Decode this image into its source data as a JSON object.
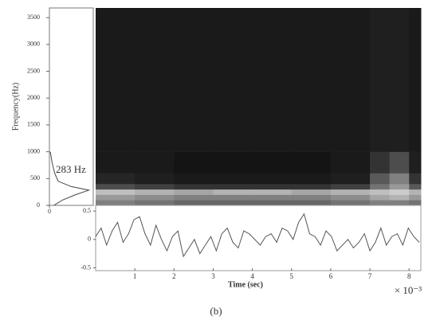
{
  "chart_data": [
    {
      "type": "heatmap",
      "y_label": "Frequency(Hz)",
      "xlim": [
        0,
        8.3
      ],
      "ylim": [
        0,
        3680
      ],
      "yticks": [
        0,
        500,
        1000,
        1500,
        2000,
        2500,
        3000,
        3500
      ],
      "x_bins": [
        0,
        1,
        2,
        3,
        4,
        5,
        6,
        7,
        7.5,
        8,
        8.3
      ],
      "y_bins": [
        0,
        100,
        200,
        300,
        400,
        600,
        1000,
        3680
      ],
      "z": [
        [
          0.5,
          0.45,
          0.4,
          0.4,
          0.4,
          0.4,
          0.45,
          0.5,
          0.5,
          0.45
        ],
        [
          0.6,
          0.55,
          0.5,
          0.5,
          0.5,
          0.5,
          0.55,
          0.65,
          0.7,
          0.6
        ],
        [
          0.75,
          0.7,
          0.65,
          0.7,
          0.7,
          0.65,
          0.7,
          0.75,
          0.8,
          0.7
        ],
        [
          0.3,
          0.25,
          0.2,
          0.2,
          0.2,
          0.2,
          0.25,
          0.45,
          0.6,
          0.35
        ],
        [
          0.15,
          0.12,
          0.1,
          0.1,
          0.1,
          0.1,
          0.12,
          0.35,
          0.5,
          0.2
        ],
        [
          0.1,
          0.1,
          0.08,
          0.08,
          0.08,
          0.08,
          0.1,
          0.2,
          0.3,
          0.12
        ],
        [
          0.1,
          0.1,
          0.1,
          0.1,
          0.1,
          0.1,
          0.1,
          0.12,
          0.12,
          0.1
        ]
      ]
    },
    {
      "type": "spectrum",
      "annotation": "283 Hz",
      "xlim": [
        0,
        5
      ],
      "xticks": [
        0
      ],
      "freq": [
        0,
        100,
        200,
        283,
        350,
        450,
        600,
        800,
        1000
      ],
      "values": [
        0.5,
        1.5,
        3,
        4.5,
        2.5,
        1,
        0.6,
        0.3,
        0.1
      ]
    },
    {
      "type": "line",
      "x_label": "Time (sec)",
      "x_scale_label": "× 10⁻³",
      "xlim": [
        0,
        8.3
      ],
      "xticks": [
        1,
        2,
        3,
        4,
        5,
        6,
        7,
        8
      ],
      "ylim": [
        -0.55,
        0.6
      ],
      "yticks": [
        -0.5,
        0,
        0.5
      ],
      "x": [
        0,
        0.14,
        0.28,
        0.42,
        0.56,
        0.7,
        0.84,
        0.98,
        1.12,
        1.26,
        1.4,
        1.54,
        1.68,
        1.82,
        1.96,
        2.1,
        2.24,
        2.38,
        2.52,
        2.66,
        2.8,
        2.94,
        3.08,
        3.22,
        3.36,
        3.5,
        3.64,
        3.78,
        3.92,
        4.06,
        4.2,
        4.34,
        4.48,
        4.62,
        4.76,
        4.9,
        5.04,
        5.18,
        5.32,
        5.46,
        5.6,
        5.74,
        5.88,
        6.02,
        6.16,
        6.3,
        6.44,
        6.58,
        6.72,
        6.86,
        7.0,
        7.14,
        7.28,
        7.42,
        7.56,
        7.7,
        7.84,
        7.98,
        8.12,
        8.26
      ],
      "values": [
        0.05,
        0.2,
        -0.1,
        0.15,
        0.3,
        -0.05,
        0.1,
        0.35,
        0.4,
        0.1,
        -0.1,
        0.25,
        0.0,
        -0.2,
        0.05,
        0.15,
        -0.3,
        -0.15,
        0.0,
        -0.25,
        -0.1,
        0.05,
        -0.2,
        0.1,
        0.2,
        -0.05,
        -0.15,
        0.15,
        0.1,
        0.0,
        -0.1,
        0.05,
        0.1,
        -0.05,
        0.2,
        0.15,
        0.0,
        0.3,
        0.45,
        0.1,
        0.05,
        -0.1,
        0.15,
        0.05,
        -0.2,
        -0.1,
        0.0,
        -0.15,
        -0.05,
        0.1,
        -0.2,
        -0.05,
        0.2,
        -0.1,
        0.05,
        0.1,
        -0.1,
        0.2,
        0.05,
        -0.05
      ],
      "color": "#555555"
    }
  ],
  "caption": "(b)"
}
